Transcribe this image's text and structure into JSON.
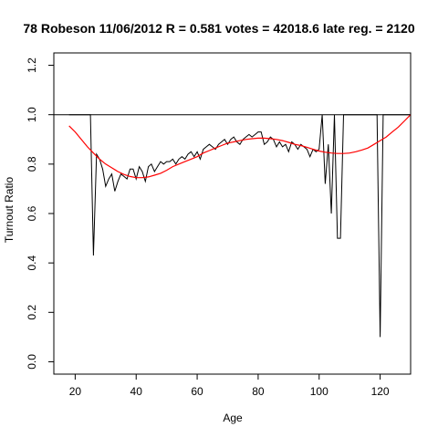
{
  "chart_data": {
    "type": "line",
    "title": "78 Robeson 11/06/2012 R = 0.581 votes = 42018.6 late reg. = 2120",
    "xlabel": "Age",
    "ylabel": "Turnout Ratio",
    "xlim": [
      13,
      130
    ],
    "ylim": [
      -0.05,
      1.25
    ],
    "x_ticks": [
      20,
      40,
      60,
      80,
      100,
      120
    ],
    "x_tick_labels": [
      "20",
      "40",
      "60",
      "80",
      "100",
      "120"
    ],
    "y_ticks": [
      0.0,
      0.2,
      0.4,
      0.6,
      0.8,
      1.0,
      1.2
    ],
    "y_tick_labels": [
      "0.0",
      "0.2",
      "0.4",
      "0.6",
      "0.8",
      "1.0",
      "1.2"
    ],
    "grid": false,
    "colors": {
      "observed": "#000000",
      "fit": "#ff0000",
      "reference": "#000000"
    },
    "reference_line": {
      "y": 1.0
    },
    "series": [
      {
        "key": "observed",
        "x": [
          18,
          19,
          20,
          21,
          22,
          23,
          24,
          25,
          26,
          27,
          28,
          29,
          30,
          31,
          32,
          33,
          34,
          35,
          36,
          37,
          38,
          39,
          40,
          41,
          42,
          43,
          44,
          45,
          46,
          47,
          48,
          49,
          50,
          51,
          52,
          53,
          54,
          55,
          56,
          57,
          58,
          59,
          60,
          61,
          62,
          63,
          64,
          65,
          66,
          67,
          68,
          69,
          70,
          71,
          72,
          73,
          74,
          75,
          76,
          77,
          78,
          79,
          80,
          81,
          82,
          83,
          84,
          85,
          86,
          87,
          88,
          89,
          90,
          91,
          92,
          93,
          94,
          95,
          96,
          97,
          98,
          99,
          100,
          101,
          102,
          103,
          104,
          105,
          106,
          107,
          108,
          109,
          110,
          111,
          112,
          113,
          114,
          115,
          116,
          117,
          118,
          119,
          120,
          121,
          122,
          123,
          124,
          125,
          126,
          127,
          128,
          129,
          130
        ],
        "y": [
          1.0,
          1.0,
          1.0,
          1.0,
          1.0,
          1.0,
          1.0,
          1.0,
          0.43,
          0.84,
          0.82,
          0.78,
          0.71,
          0.74,
          0.76,
          0.69,
          0.73,
          0.76,
          0.75,
          0.74,
          0.78,
          0.78,
          0.74,
          0.79,
          0.77,
          0.73,
          0.79,
          0.8,
          0.77,
          0.79,
          0.81,
          0.8,
          0.81,
          0.81,
          0.82,
          0.8,
          0.82,
          0.83,
          0.82,
          0.84,
          0.85,
          0.83,
          0.85,
          0.82,
          0.86,
          0.87,
          0.88,
          0.87,
          0.86,
          0.88,
          0.89,
          0.9,
          0.88,
          0.9,
          0.91,
          0.89,
          0.88,
          0.9,
          0.91,
          0.92,
          0.91,
          0.92,
          0.93,
          0.93,
          0.88,
          0.89,
          0.91,
          0.9,
          0.87,
          0.89,
          0.87,
          0.88,
          0.85,
          0.89,
          0.88,
          0.86,
          0.88,
          0.87,
          0.86,
          0.83,
          0.86,
          0.85,
          0.86,
          1.0,
          0.72,
          0.88,
          0.6,
          1.0,
          0.5,
          0.5,
          1.0,
          1.0,
          1.0,
          1.0,
          1.0,
          1.0,
          1.0,
          1.0,
          1.0,
          1.0,
          1.0,
          1.0,
          0.1,
          1.0,
          1.0,
          1.0,
          1.0,
          1.0,
          1.0,
          1.0,
          1.0,
          1.0,
          1.0
        ]
      },
      {
        "key": "fit",
        "x": [
          18,
          20,
          22,
          24,
          26,
          28,
          30,
          32,
          34,
          36,
          38,
          40,
          42,
          44,
          46,
          48,
          50,
          52,
          54,
          56,
          58,
          60,
          62,
          64,
          66,
          68,
          70,
          72,
          74,
          76,
          78,
          80,
          82,
          84,
          86,
          88,
          90,
          92,
          94,
          96,
          98,
          100,
          102,
          104,
          106,
          108,
          110,
          112,
          114,
          116,
          118,
          120,
          122,
          124,
          126,
          128,
          130
        ],
        "y": [
          0.955,
          0.93,
          0.9,
          0.87,
          0.845,
          0.82,
          0.8,
          0.785,
          0.77,
          0.758,
          0.75,
          0.745,
          0.745,
          0.748,
          0.755,
          0.763,
          0.775,
          0.79,
          0.8,
          0.81,
          0.82,
          0.83,
          0.845,
          0.855,
          0.865,
          0.875,
          0.885,
          0.89,
          0.895,
          0.9,
          0.903,
          0.905,
          0.905,
          0.903,
          0.9,
          0.895,
          0.888,
          0.88,
          0.875,
          0.868,
          0.86,
          0.853,
          0.848,
          0.845,
          0.843,
          0.843,
          0.845,
          0.85,
          0.857,
          0.865,
          0.88,
          0.895,
          0.91,
          0.93,
          0.95,
          0.975,
          1.0
        ]
      }
    ]
  }
}
